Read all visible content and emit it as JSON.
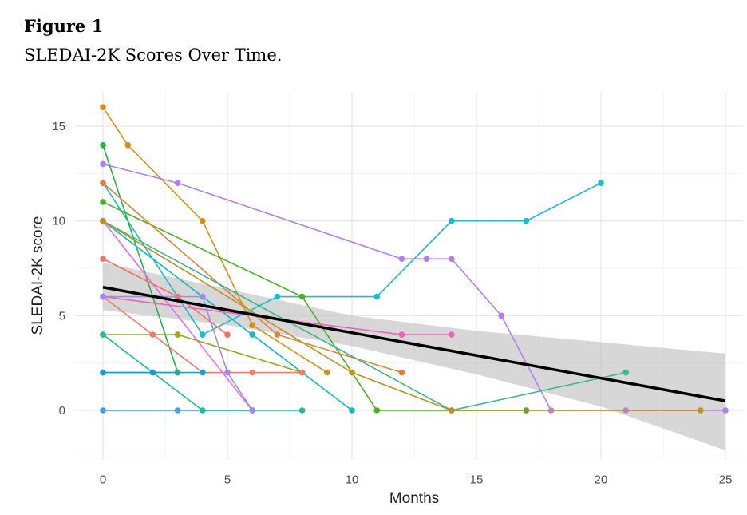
{
  "figure_label": "Figure 1",
  "chart_data": {
    "type": "line",
    "title": "SLEDAI-2K Scores Over Time.",
    "x_label": "Months",
    "y_label": "SLEDAI-2K score",
    "xlim": [
      -1.1,
      25.7
    ],
    "ylim": [
      -2.6,
      16.8
    ],
    "xticks": [
      0,
      5,
      10,
      15,
      20,
      25
    ],
    "yticks": [
      0,
      5,
      10,
      15
    ],
    "grid": true,
    "series": [
      {
        "color": "#d4901a",
        "x": [
          0,
          1,
          4,
          6,
          9
        ],
        "values": [
          16,
          14,
          10,
          4.5,
          2
        ]
      },
      {
        "color": "#b77ef0",
        "x": [
          0,
          3,
          12,
          13,
          14,
          16,
          18,
          21,
          25
        ],
        "values": [
          13,
          12,
          8,
          8,
          8,
          5,
          0,
          0,
          0
        ]
      },
      {
        "color": "#19bccd",
        "x": [
          0,
          4,
          7,
          11,
          14,
          17,
          20
        ],
        "values": [
          12,
          4,
          6,
          6,
          10,
          10,
          12
        ]
      },
      {
        "color": "#24b24a",
        "x": [
          0,
          3
        ],
        "values": [
          14,
          2
        ]
      },
      {
        "color": "#4cb020",
        "x": [
          0,
          8,
          11,
          17
        ],
        "values": [
          11,
          6,
          0,
          0
        ]
      },
      {
        "color": "#e0823c",
        "x": [
          0,
          7,
          12
        ],
        "values": [
          12,
          4,
          2
        ]
      },
      {
        "color": "#16b8c0",
        "x": [
          0,
          6,
          10
        ],
        "values": [
          10,
          4,
          0
        ]
      },
      {
        "color": "#e76bf3",
        "x": [
          0,
          6
        ],
        "values": [
          10,
          0
        ]
      },
      {
        "color": "#f07167",
        "x": [
          0,
          3,
          5
        ],
        "values": [
          8,
          6,
          4
        ]
      },
      {
        "color": "#f063b8",
        "x": [
          0,
          12,
          14
        ],
        "values": [
          6,
          4,
          4
        ]
      },
      {
        "color": "#a3a31e",
        "x": [
          0,
          3,
          8
        ],
        "values": [
          4,
          4,
          2
        ]
      },
      {
        "color": "#3cb34a",
        "x": [
          0,
          3
        ],
        "values": [
          2,
          2
        ]
      },
      {
        "color": "#42a0f0",
        "x": [
          0,
          3,
          6
        ],
        "values": [
          0,
          0,
          0
        ]
      },
      {
        "color": "#1fbca0",
        "x": [
          0,
          4,
          8
        ],
        "values": [
          4,
          0,
          0
        ]
      },
      {
        "color": "#3cb88a",
        "x": [
          0,
          14,
          21
        ],
        "values": [
          10,
          0,
          2
        ]
      },
      {
        "color": "#f27c6e",
        "x": [
          0,
          2,
          4,
          6,
          8
        ],
        "values": [
          6,
          4,
          2,
          2,
          2
        ]
      },
      {
        "color": "#c09020",
        "x": [
          0,
          10,
          14,
          24
        ],
        "values": [
          10,
          2,
          0,
          0
        ]
      },
      {
        "color": "#9c8cf0",
        "x": [
          0,
          4,
          5,
          6
        ],
        "values": [
          6,
          6,
          2,
          0
        ]
      },
      {
        "color": "#1aa0d8",
        "x": [
          0,
          2,
          4
        ],
        "values": [
          2,
          2,
          2
        ]
      }
    ],
    "trend": {
      "color": "#000000",
      "x": [
        0,
        25
      ],
      "values": [
        6.5,
        0.5
      ]
    },
    "confidence_band": {
      "color": "#bdbdbd",
      "x": [
        0,
        5,
        10,
        15,
        20,
        25
      ],
      "lower": [
        5.3,
        4.5,
        3.4,
        1.9,
        0.2,
        -2.1
      ],
      "upper": [
        7.8,
        6.4,
        5.0,
        4.2,
        3.6,
        3.0
      ]
    }
  }
}
